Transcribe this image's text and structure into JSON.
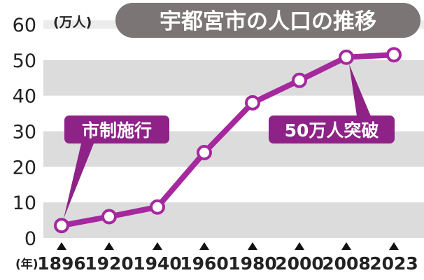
{
  "chart_data": {
    "type": "line",
    "title": "宇都宮市の人口の推移",
    "ylabel": "(万人)",
    "xlabel": "(年)",
    "ylim": [
      0,
      60
    ],
    "yticks": [
      0,
      10,
      20,
      30,
      40,
      50,
      60
    ],
    "categories": [
      "1896",
      "1920",
      "1940",
      "1960",
      "1980",
      "2000",
      "2008",
      "2023"
    ],
    "values": [
      3.5,
      6,
      8.7,
      24,
      38,
      44.3,
      50.8,
      51.5
    ],
    "grid": "horizontal-bands",
    "annotations": [
      {
        "text": "市制施行",
        "target_index": 0
      },
      {
        "text": "50万人突破",
        "target_index": 6
      }
    ]
  },
  "colors": {
    "line": "#a5289e",
    "band": "#dcdcdc",
    "title_bg": "#7c7575",
    "title_text": "#ffffff",
    "label_bg": "#8e2287",
    "text": "#222222",
    "marker_fill": "#ffffff"
  }
}
